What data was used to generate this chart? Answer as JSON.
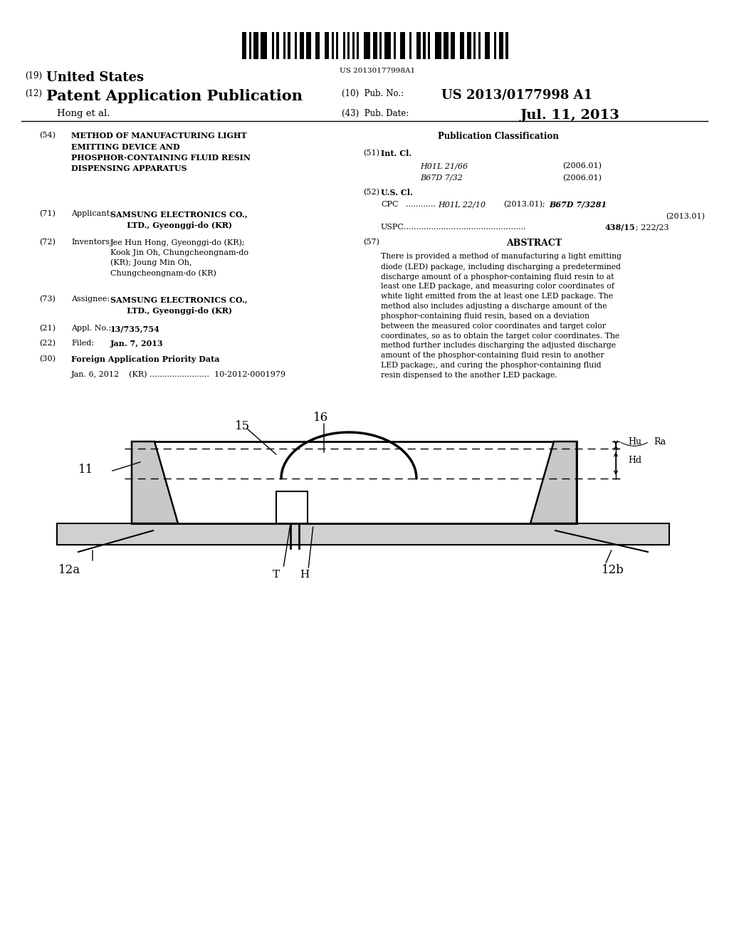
{
  "background_color": "#ffffff",
  "barcode_text": "US 20130177998A1",
  "title_19_small": "(19)",
  "title_19_big": "United States",
  "title_12_small": "(12)",
  "title_12_big": "Patent Application Publication",
  "pub_no_label": "(10)  Pub. No.:",
  "pub_no": "US 2013/0177998 A1",
  "inventor_label": "Hong et al.",
  "pub_date_label": "(43)  Pub. Date:",
  "pub_date": "Jul. 11, 2013",
  "section54_num": "(54)",
  "section54_title": "METHOD OF MANUFACTURING LIGHT\nEMITTING DEVICE AND\nPHOSPHOR-CONTAINING FLUID RESIN\nDISPENSING APPARATUS",
  "section71_num": "(71)",
  "section71_label": "Applicant: ",
  "section71_text": "SAMSUNG ELECTRONICS CO.,\n         LTD., Gyeonggi-do (KR)",
  "section72_num": "(72)",
  "section72_label": "Inventors: ",
  "section72_text": "Jee Hun Hong, Gyeonggi-do (KR);\nKook Jin Oh, Chungcheongnam-do\n(KR); Joung Min Oh,\nChungcheongnam-do (KR)",
  "section73_num": "(73)",
  "section73_label": "Assignee: ",
  "section73_text": "SAMSUNG ELECTRONICS CO.,\n         LTD., Gyeonggi-do (KR)",
  "section21_num": "(21)",
  "section21_label": "Appl. No.: ",
  "section21_text": "13/735,754",
  "section22_num": "(22)",
  "section22_label": "Filed:      ",
  "section22_text": "Jan. 7, 2013",
  "section30_num": "(30)",
  "section30_label": "Foreign Application Priority Data",
  "section30_text": "Jan. 6, 2012    (KR) ........................  10-2012-0001979",
  "pub_class_title": "Publication Classification",
  "section51_num": "(51)",
  "section51_label": "Int. Cl.",
  "section51_class1": "H01L 21/66",
  "section51_year1": "(2006.01)",
  "section51_class2": "B67D 7/32",
  "section51_year2": "(2006.01)",
  "section52_num": "(52)",
  "section52_label": "U.S. Cl.",
  "section57_num": "(57)",
  "section57_label": "ABSTRACT",
  "abstract_text": "There is provided a method of manufacturing a light emitting\ndiode (LED) package, including discharging a predetermined\ndischarge amount of a phosphor-containing fluid resin to at\nleast one LED package, and measuring color coordinates of\nwhite light emitted from the at least one LED package. The\nmethod also includes adjusting a discharge amount of the\nphosphor-containing fluid resin, based on a deviation\nbetween the measured color coordinates and target color\ncoordinates, so as to obtain the target color coordinates. The\nmethod further includes discharging the adjusted discharge\namount of the phosphor-containing fluid resin to another\nLED package;, and curing the phosphor-containing fluid\nresin dispensed to the another LED package."
}
